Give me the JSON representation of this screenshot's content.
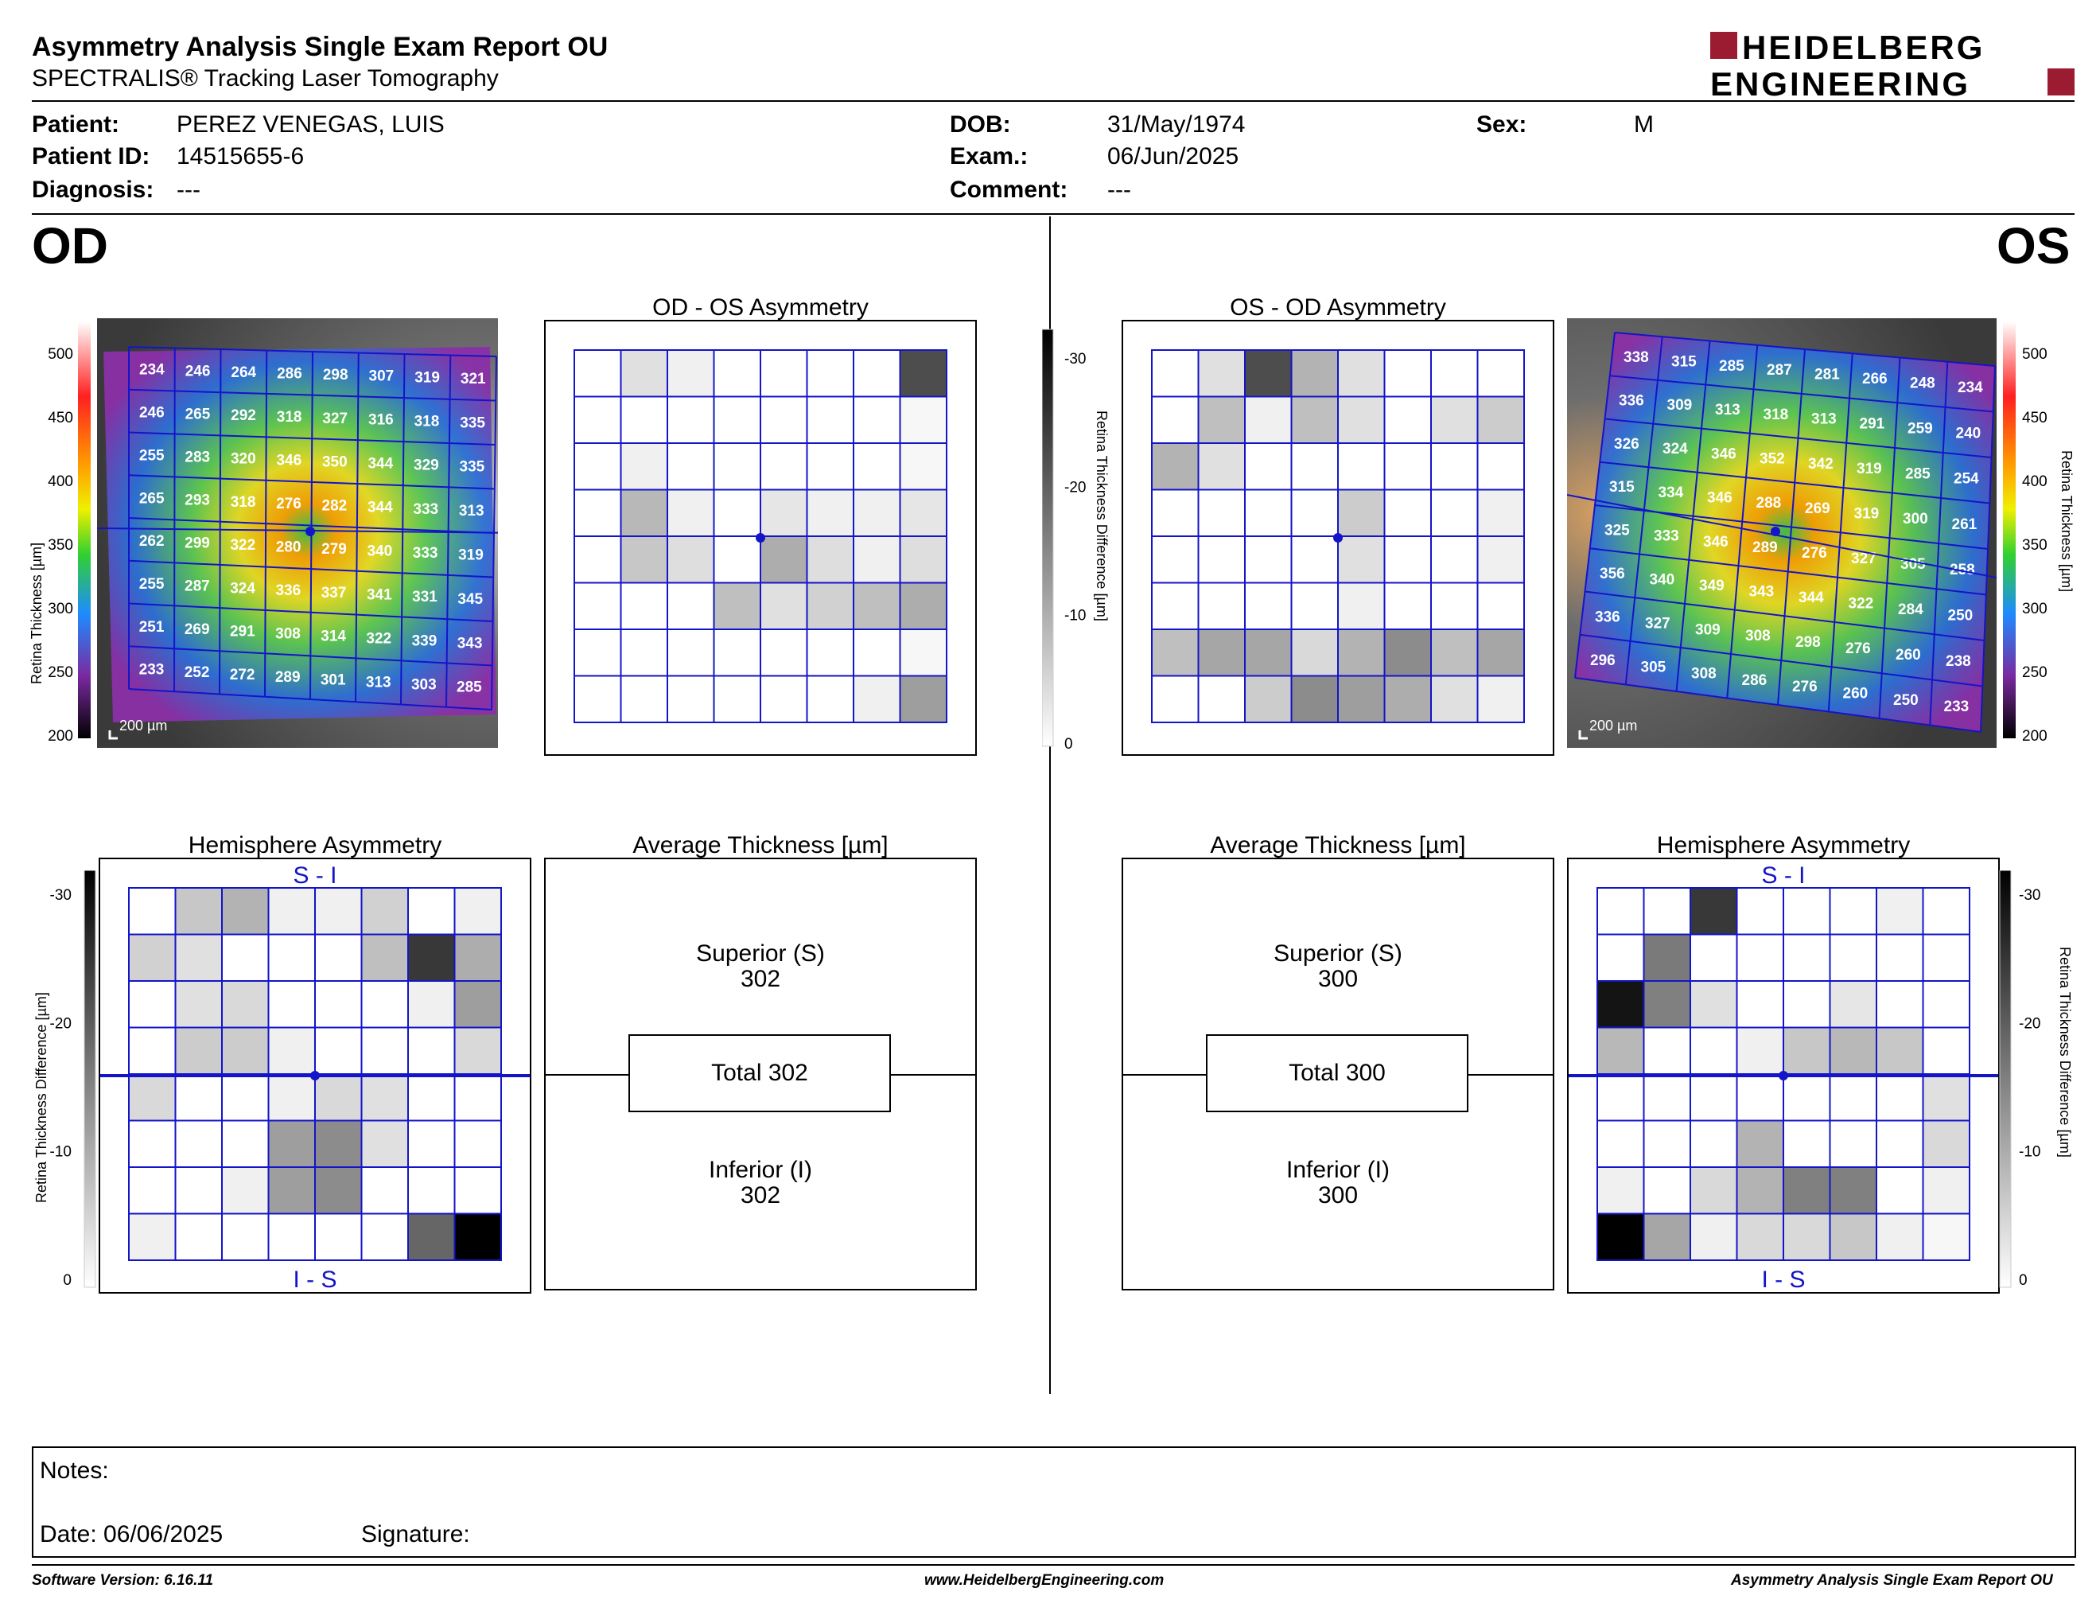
{
  "header": {
    "title": "Asymmetry Analysis Single Exam Report OU",
    "subtitle": "SPECTRALIS® Tracking Laser Tomography",
    "logo_line1": "HEIDELBERG",
    "logo_line2": "ENGINEERING"
  },
  "patient": {
    "patient_label": "Patient:",
    "patient_value": "PEREZ VENEGAS, LUIS",
    "id_label": "Patient ID:",
    "id_value": "14515655-6",
    "diagnosis_label": "Diagnosis:",
    "diagnosis_value": "---",
    "dob_label": "DOB:",
    "dob_value": "31/May/1974",
    "exam_label": "Exam.:",
    "exam_value": "06/Jun/2025",
    "comment_label": "Comment:",
    "comment_value": "---",
    "sex_label": "Sex:",
    "sex_value": "M"
  },
  "od": {
    "label": "OD",
    "scale_bar": "200 µm",
    "thickness_axis_label": "Retina Thickness [µm]",
    "thickness_ticks": [
      "500",
      "450",
      "400",
      "350",
      "300",
      "250",
      "200"
    ],
    "grid": [
      [
        234,
        246,
        264,
        286,
        298,
        307,
        319,
        321
      ],
      [
        246,
        265,
        292,
        318,
        327,
        316,
        318,
        335
      ],
      [
        255,
        283,
        320,
        346,
        350,
        344,
        329,
        335
      ],
      [
        265,
        293,
        318,
        276,
        282,
        344,
        333,
        313
      ],
      [
        262,
        299,
        322,
        280,
        279,
        340,
        333,
        319
      ],
      [
        255,
        287,
        324,
        336,
        337,
        341,
        331,
        345
      ],
      [
        251,
        269,
        291,
        308,
        314,
        322,
        339,
        343
      ],
      [
        233,
        252,
        272,
        289,
        301,
        313,
        303,
        285
      ]
    ],
    "asym_title": "OD - OS Asymmetry",
    "asym_gray": [
      [
        0,
        0.12,
        0.06,
        0,
        0,
        0,
        0,
        0.7
      ],
      [
        0,
        0,
        0,
        0,
        0,
        0,
        0,
        0.03
      ],
      [
        0,
        0.06,
        0,
        0,
        0,
        0,
        0,
        0.03
      ],
      [
        0,
        0.28,
        0.06,
        0,
        0.1,
        0.06,
        0.06,
        0.1
      ],
      [
        0,
        0.22,
        0.13,
        0,
        0.32,
        0.13,
        0.06,
        0.13
      ],
      [
        0,
        0,
        0,
        0.25,
        0.12,
        0.18,
        0.25,
        0.32
      ],
      [
        0,
        0,
        0,
        0,
        0,
        0,
        0,
        0.03
      ],
      [
        0,
        0,
        0,
        0,
        0,
        0,
        0.06,
        0.38
      ]
    ],
    "hemi_title": "Hemisphere Asymmetry",
    "hemi_top_label": "S - I",
    "hemi_bottom_label": "I - S",
    "hemi_axis_label": "Retina Thickness Difference [µm]",
    "hemi_ticks": [
      "-30",
      "-20",
      "-10",
      "0"
    ],
    "hemi_gray": [
      [
        0,
        0.22,
        0.3,
        0.06,
        0.06,
        0.18,
        0,
        0.06
      ],
      [
        0.18,
        0.12,
        0,
        0,
        0,
        0.25,
        0.78,
        0.32
      ],
      [
        0,
        0.12,
        0.15,
        0,
        0,
        0,
        0.06,
        0.38
      ],
      [
        0,
        0.2,
        0.2,
        0.06,
        0,
        0,
        0,
        0.15
      ],
      [
        0.15,
        0,
        0,
        0.06,
        0.15,
        0.12,
        0,
        0
      ],
      [
        0,
        0,
        0,
        0.38,
        0.45,
        0.12,
        0,
        0
      ],
      [
        0,
        0,
        0.06,
        0.38,
        0.45,
        0,
        0,
        0
      ],
      [
        0.06,
        0,
        0,
        0,
        0,
        0,
        0.6,
        1.0
      ]
    ],
    "avg_title": "Average Thickness [µm]",
    "superior_label": "Superior (S)",
    "superior_value": "302",
    "total_label": "Total 302",
    "inferior_label": "Inferior (I)",
    "inferior_value": "302"
  },
  "os": {
    "label": "OS",
    "scale_bar": "200 µm",
    "thickness_axis_label": "Retina Thickness [µm]",
    "thickness_ticks": [
      "500",
      "450",
      "400",
      "350",
      "300",
      "250",
      "200"
    ],
    "grid": [
      [
        338,
        315,
        285,
        287,
        281,
        266,
        248,
        234
      ],
      [
        336,
        309,
        313,
        318,
        313,
        291,
        259,
        240
      ],
      [
        326,
        324,
        346,
        352,
        342,
        319,
        285,
        254
      ],
      [
        315,
        334,
        346,
        288,
        269,
        319,
        300,
        261
      ],
      [
        325,
        333,
        346,
        289,
        276,
        327,
        305,
        258
      ],
      [
        356,
        340,
        349,
        343,
        344,
        322,
        284,
        250
      ],
      [
        336,
        327,
        309,
        308,
        298,
        276,
        260,
        238
      ],
      [
        296,
        305,
        308,
        286,
        276,
        260,
        250,
        233
      ]
    ],
    "asym_title": "OS - OD Asymmetry",
    "asym_axis_label": "Retina Thickness Difference [µm]",
    "asym_ticks": [
      "-30",
      "-20",
      "-10",
      "0"
    ],
    "asym_gray": [
      [
        0,
        0.12,
        0.7,
        0.3,
        0.12,
        0,
        0,
        0
      ],
      [
        0,
        0.25,
        0.06,
        0.25,
        0.12,
        0,
        0.12,
        0.2
      ],
      [
        0.3,
        0.12,
        0,
        0,
        0,
        0,
        0,
        0
      ],
      [
        0,
        0,
        0,
        0,
        0.2,
        0,
        0,
        0.06
      ],
      [
        0,
        0,
        0,
        0,
        0.12,
        0,
        0,
        0.06
      ],
      [
        0,
        0,
        0,
        0,
        0.06,
        0,
        0,
        0
      ],
      [
        0.25,
        0.35,
        0.35,
        0.15,
        0.3,
        0.45,
        0.25,
        0.35
      ],
      [
        0,
        0,
        0.2,
        0.45,
        0.38,
        0.32,
        0.12,
        0.06
      ]
    ],
    "hemi_title": "Hemisphere Asymmetry",
    "hemi_top_label": "S - I",
    "hemi_bottom_label": "I - S",
    "hemi_axis_label": "Retina Thickness Difference [µm]",
    "hemi_ticks": [
      "-30",
      "-20",
      "-10",
      "0"
    ],
    "hemi_gray": [
      [
        0,
        0,
        0.78,
        0,
        0,
        0,
        0.06,
        0
      ],
      [
        0,
        0.52,
        0,
        0,
        0,
        0,
        0,
        0
      ],
      [
        0.92,
        0.5,
        0.12,
        0,
        0,
        0.1,
        0,
        0
      ],
      [
        0.28,
        0,
        0,
        0.06,
        0.22,
        0.28,
        0.22,
        0
      ],
      [
        0,
        0,
        0,
        0,
        0,
        0,
        0,
        0.12
      ],
      [
        0,
        0,
        0,
        0.3,
        0,
        0,
        0,
        0.15
      ],
      [
        0.06,
        0,
        0.15,
        0.3,
        0.5,
        0.5,
        0,
        0.06
      ],
      [
        1.0,
        0.35,
        0.06,
        0.15,
        0.15,
        0.22,
        0.06,
        0.03
      ]
    ],
    "avg_title": "Average Thickness [µm]",
    "superior_label": "Superior (S)",
    "superior_value": "300",
    "total_label": "Total 300",
    "inferior_label": "Inferior (I)",
    "inferior_value": "300"
  },
  "notes": {
    "notes_label": "Notes:",
    "date_label": "Date: 06/06/2025",
    "signature_label": "Signature:"
  },
  "footer": {
    "software": "Software Version: 6.16.11",
    "website": "www.HeidelbergEngineering.com",
    "report_name": "Asymmetry Analysis Single Exam Report OU"
  },
  "colors": {
    "grid_line": "#1414c8",
    "logo_red": "#9b1c31"
  }
}
